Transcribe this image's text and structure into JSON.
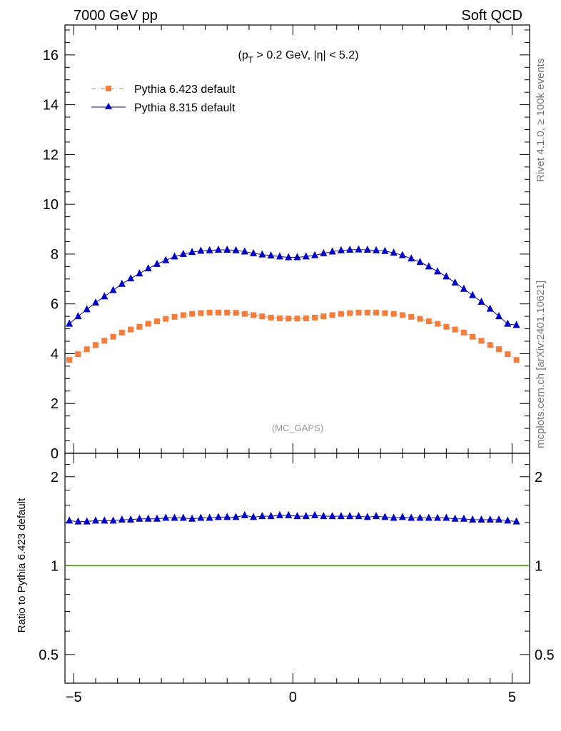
{
  "header": {
    "left_title": "7000 GeV pp",
    "right_title": "Soft QCD",
    "side_label_top": "Rivet 4.1.0, ≥ 100k events",
    "side_label_bottom": "mcplots.cern.ch [arXiv:2401.10621]"
  },
  "chart_data": [
    {
      "type": "scatter",
      "panel": "main",
      "annotation": {
        "prefix": "(p",
        "subscript": "T",
        "rest": " > 0.2 GeV, |η| < 5.2)"
      },
      "watermark": "(MC_GAPS)",
      "xlim": [
        -5.2,
        5.4
      ],
      "ylim": [
        0,
        17.2
      ],
      "y_ticks": [
        0,
        2,
        4,
        6,
        8,
        10,
        12,
        14,
        16
      ],
      "y_tick_labels": [
        "0",
        "2",
        "4",
        "6",
        "8",
        "10",
        "12",
        "14",
        "16"
      ],
      "legend": [
        {
          "name": "Pythia 6.423 default",
          "color": "#f47d3b",
          "marker": "square",
          "line": "dashdot"
        },
        {
          "name": "Pythia 8.315 default",
          "color": "#0000cc",
          "marker": "triangle",
          "line": "solid"
        }
      ],
      "x": [
        -5.1,
        -4.9,
        -4.7,
        -4.5,
        -4.3,
        -4.1,
        -3.9,
        -3.7,
        -3.5,
        -3.3,
        -3.1,
        -2.9,
        -2.7,
        -2.5,
        -2.3,
        -2.1,
        -1.9,
        -1.7,
        -1.5,
        -1.3,
        -1.1,
        -0.9,
        -0.7,
        -0.5,
        -0.3,
        -0.1,
        0.1,
        0.3,
        0.5,
        0.7,
        0.9,
        1.1,
        1.3,
        1.5,
        1.7,
        1.9,
        2.1,
        2.3,
        2.5,
        2.7,
        2.9,
        3.1,
        3.3,
        3.5,
        3.7,
        3.9,
        4.1,
        4.3,
        4.5,
        4.7,
        4.9,
        5.1
      ],
      "series": [
        {
          "name": "Pythia 6.423 default",
          "values": [
            3.75,
            3.98,
            4.18,
            4.35,
            4.52,
            4.68,
            4.85,
            4.97,
            5.08,
            5.2,
            5.3,
            5.4,
            5.48,
            5.55,
            5.6,
            5.63,
            5.65,
            5.65,
            5.65,
            5.64,
            5.6,
            5.55,
            5.5,
            5.45,
            5.42,
            5.41,
            5.41,
            5.42,
            5.45,
            5.5,
            5.55,
            5.6,
            5.63,
            5.65,
            5.65,
            5.65,
            5.63,
            5.6,
            5.55,
            5.48,
            5.4,
            5.3,
            5.2,
            5.08,
            4.97,
            4.85,
            4.68,
            4.52,
            4.35,
            4.18,
            3.98,
            3.75
          ]
        },
        {
          "name": "Pythia 8.315 default",
          "values": [
            5.2,
            5.5,
            5.78,
            6.05,
            6.3,
            6.55,
            6.8,
            7.02,
            7.22,
            7.42,
            7.6,
            7.75,
            7.9,
            8.0,
            8.08,
            8.13,
            8.15,
            8.17,
            8.17,
            8.15,
            8.1,
            8.03,
            7.98,
            7.94,
            7.9,
            7.87,
            7.87,
            7.9,
            7.95,
            8.03,
            8.1,
            8.15,
            8.17,
            8.18,
            8.17,
            8.15,
            8.12,
            8.05,
            7.95,
            7.82,
            7.68,
            7.5,
            7.3,
            7.1,
            6.85,
            6.6,
            6.35,
            6.08,
            5.8,
            5.5,
            5.2,
            5.15
          ]
        }
      ]
    },
    {
      "type": "scatter",
      "panel": "ratio",
      "ylabel": "Ratio to Pythia 6.423 default",
      "xlim": [
        -5.2,
        5.4
      ],
      "ylim": [
        0.4,
        2.4
      ],
      "log_y": true,
      "y_ticks": [
        0.5,
        1,
        2
      ],
      "y_tick_labels": [
        "0.5",
        "1",
        "2"
      ],
      "x_ticks": [
        -5,
        0,
        5
      ],
      "x_tick_labels": [
        "−5",
        "0",
        "5"
      ],
      "reference_line": {
        "value": 1,
        "color": "#4d8a1e"
      },
      "series": [
        {
          "name": "Pythia 8.315 default",
          "values": [
            1.42,
            1.41,
            1.41,
            1.42,
            1.42,
            1.42,
            1.43,
            1.43,
            1.44,
            1.44,
            1.44,
            1.45,
            1.45,
            1.45,
            1.44,
            1.45,
            1.45,
            1.46,
            1.46,
            1.46,
            1.48,
            1.46,
            1.47,
            1.47,
            1.48,
            1.48,
            1.47,
            1.47,
            1.48,
            1.47,
            1.47,
            1.47,
            1.47,
            1.47,
            1.46,
            1.47,
            1.46,
            1.45,
            1.46,
            1.45,
            1.45,
            1.45,
            1.45,
            1.45,
            1.44,
            1.44,
            1.43,
            1.43,
            1.43,
            1.43,
            1.42,
            1.41
          ]
        }
      ]
    }
  ]
}
